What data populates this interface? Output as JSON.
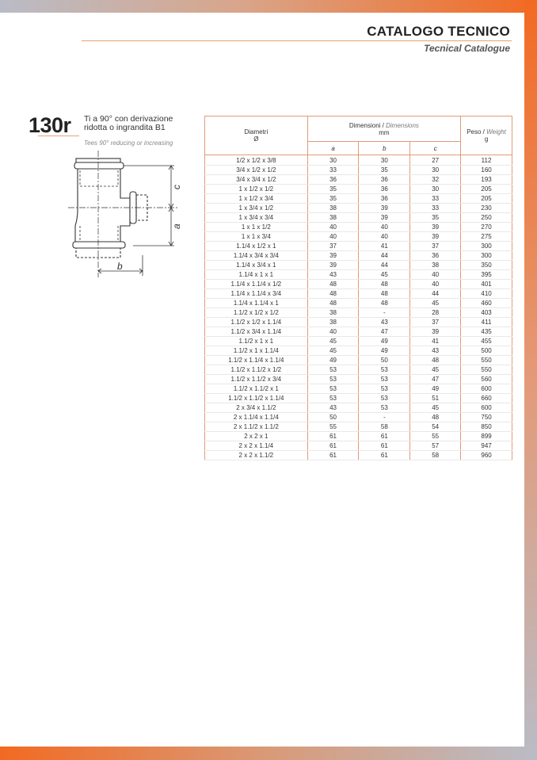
{
  "header": {
    "title": "CATALOGO TECNICO",
    "subtitle": "Tecnical Catalogue"
  },
  "product": {
    "code": "130r",
    "name_line1": "Ti a 90° con derivazione",
    "name_line2": "ridotta o ingrandita B1",
    "name_en": "Tees 90° reducing or increasing"
  },
  "drawing": {
    "labels": {
      "a": "a",
      "b": "b",
      "c": "c"
    }
  },
  "colors": {
    "accent": "#f26a22",
    "table_border": "#e39a78"
  },
  "table": {
    "headers": {
      "diametri": "Diametri",
      "diametri_symbol": "Ø",
      "dim_it": "Dimensioni",
      "dim_sep": " / ",
      "dim_en": "Dimensions",
      "dim_unit": "mm",
      "peso_it": "Peso",
      "peso_sep": " / ",
      "peso_en": "Weight",
      "peso_unit": "g",
      "a": "a",
      "b": "b",
      "c": "c"
    },
    "rows": [
      [
        "1/2 x 1/2 x 3/8",
        "30",
        "30",
        "27",
        "112"
      ],
      [
        "3/4 x 1/2 x 1/2",
        "33",
        "35",
        "30",
        "160"
      ],
      [
        "3/4 x 3/4 x 1/2",
        "36",
        "36",
        "32",
        "193"
      ],
      [
        "1 x 1/2 x 1/2",
        "35",
        "36",
        "30",
        "205"
      ],
      [
        "1 x 1/2 x 3/4",
        "35",
        "36",
        "33",
        "205"
      ],
      [
        "1 x 3/4 x 1/2",
        "38",
        "39",
        "33",
        "230"
      ],
      [
        "1 x 3/4 x 3/4",
        "38",
        "39",
        "35",
        "250"
      ],
      [
        "1 x 1 x 1/2",
        "40",
        "40",
        "39",
        "270"
      ],
      [
        "1 x 1 x 3/4",
        "40",
        "40",
        "39",
        "275"
      ],
      [
        "1.1/4 x 1/2 x 1",
        "37",
        "41",
        "37",
        "300"
      ],
      [
        "1.1/4 x 3/4 x 3/4",
        "39",
        "44",
        "36",
        "300"
      ],
      [
        "1.1/4 x 3/4 x 1",
        "39",
        "44",
        "38",
        "350"
      ],
      [
        "1.1/4 x 1 x 1",
        "43",
        "45",
        "40",
        "395"
      ],
      [
        "1.1/4 x 1.1/4 x 1/2",
        "48",
        "48",
        "40",
        "401"
      ],
      [
        "1.1/4 x 1.1/4 x 3/4",
        "48",
        "48",
        "44",
        "410"
      ],
      [
        "1.1/4 x 1.1/4 x 1",
        "48",
        "48",
        "45",
        "460"
      ],
      [
        "1.1/2 x 1/2 x 1/2",
        "38",
        "-",
        "28",
        "403"
      ],
      [
        "1.1/2 x 1/2 x 1.1/4",
        "38",
        "43",
        "37",
        "411"
      ],
      [
        "1.1/2 x 3/4 x 1.1/4",
        "40",
        "47",
        "39",
        "435"
      ],
      [
        "1.1/2 x 1 x 1",
        "45",
        "49",
        "41",
        "455"
      ],
      [
        "1.1/2 x 1 x 1.1/4",
        "45",
        "49",
        "43",
        "500"
      ],
      [
        "1.1/2 x 1.1/4 x 1.1/4",
        "49",
        "50",
        "48",
        "550"
      ],
      [
        "1.1/2 x 1.1/2 x 1/2",
        "53",
        "53",
        "45",
        "550"
      ],
      [
        "1.1/2 x 1.1/2 x 3/4",
        "53",
        "53",
        "47",
        "560"
      ],
      [
        "1.1/2 x 1.1/2 x 1",
        "53",
        "53",
        "49",
        "600"
      ],
      [
        "1.1/2 x 1.1/2 x 1.1/4",
        "53",
        "53",
        "51",
        "660"
      ],
      [
        "2 x 3/4 x 1.1/2",
        "43",
        "53",
        "45",
        "600"
      ],
      [
        "2 x 1.1/4 x 1.1/4",
        "50",
        "-",
        "48",
        "750"
      ],
      [
        "2 x 1.1/2 x 1.1/2",
        "55",
        "58",
        "54",
        "850"
      ],
      [
        "2 x 2 x 1",
        "61",
        "61",
        "55",
        "899"
      ],
      [
        "2 x 2 x 1.1/4",
        "61",
        "61",
        "57",
        "947"
      ],
      [
        "2 x 2 x 1.1/2",
        "61",
        "61",
        "58",
        "960"
      ]
    ]
  }
}
